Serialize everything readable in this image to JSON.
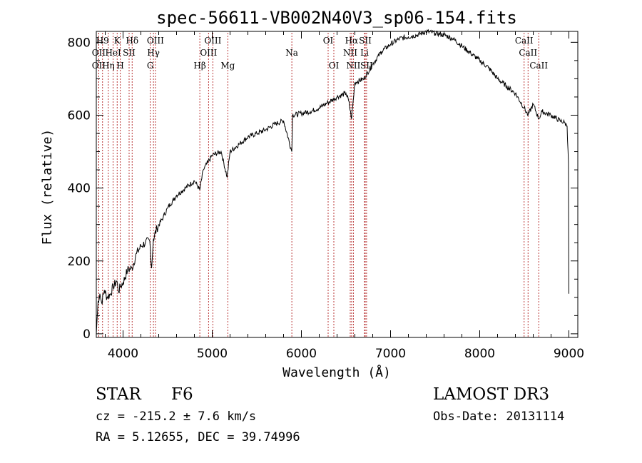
{
  "chart_data": {
    "type": "line",
    "title": "spec-56611-VB002N40V3_sp06-154.fits",
    "xlabel": "Wavelength (Å)",
    "ylabel": "Flux (relative)",
    "xlim": [
      3700,
      9100
    ],
    "ylim": [
      -10,
      830
    ],
    "x_ticks": [
      4000,
      5000,
      6000,
      7000,
      8000,
      9000
    ],
    "y_ticks": [
      0,
      200,
      400,
      600,
      800
    ],
    "colors": {
      "spectrum": "#000000",
      "line_marker": "#b22222"
    },
    "series": [
      {
        "name": "flux",
        "x": [
          3700,
          3720,
          3740,
          3760,
          3790,
          3820,
          3860,
          3890,
          3930,
          3950,
          3970,
          4000,
          4050,
          4100,
          4150,
          4200,
          4250,
          4300,
          4320,
          4340,
          4380,
          4450,
          4500,
          4600,
          4700,
          4800,
          4861,
          4900,
          4950,
          5000,
          5100,
          5167,
          5200,
          5300,
          5400,
          5500,
          5600,
          5700,
          5800,
          5893,
          5900,
          6000,
          6100,
          6200,
          6300,
          6400,
          6500,
          6530,
          6563,
          6600,
          6700,
          6800,
          6900,
          7000,
          7100,
          7200,
          7300,
          7400,
          7500,
          7600,
          7700,
          7800,
          7900,
          8000,
          8100,
          8200,
          8300,
          8400,
          8498,
          8542,
          8600,
          8662,
          8700,
          8800,
          8900,
          8950,
          8980,
          8995,
          9000
        ],
        "values": [
          0,
          90,
          110,
          85,
          120,
          100,
          110,
          130,
          145,
          115,
          130,
          140,
          175,
          180,
          220,
          240,
          250,
          255,
          180,
          260,
          290,
          320,
          345,
          380,
          400,
          420,
          395,
          450,
          470,
          490,
          500,
          430,
          500,
          520,
          540,
          550,
          560,
          575,
          585,
          500,
          600,
          605,
          610,
          620,
          635,
          650,
          660,
          640,
          590,
          690,
          700,
          740,
          775,
          795,
          810,
          815,
          820,
          830,
          825,
          820,
          810,
          790,
          770,
          750,
          730,
          700,
          680,
          660,
          620,
          600,
          630,
          590,
          610,
          600,
          585,
          580,
          570,
          470,
          110
        ]
      }
    ],
    "lines": [
      {
        "label": "OII",
        "x": 3727,
        "row": 2
      },
      {
        "label": "H9",
        "x": 3770,
        "row": 0
      },
      {
        "label": "OII",
        "x": 3727,
        "row": 1
      },
      {
        "label": "Hη",
        "x": 3835,
        "row": 2
      },
      {
        "label": "HeI",
        "x": 3889,
        "row": 1
      },
      {
        "label": "K",
        "x": 3934,
        "row": 0
      },
      {
        "label": "SII",
        "x": 4068,
        "row": 1
      },
      {
        "label": "H",
        "x": 3969,
        "row": 2
      },
      {
        "label": "Hδ",
        "x": 4102,
        "row": 0
      },
      {
        "label": "G",
        "x": 4305,
        "row": 2
      },
      {
        "label": "Hγ",
        "x": 4341,
        "row": 1
      },
      {
        "label": "OIII",
        "x": 4363,
        "row": 0
      },
      {
        "label": "Hβ",
        "x": 4861,
        "row": 2
      },
      {
        "label": "OIII",
        "x": 4959,
        "row": 1
      },
      {
        "label": "OIII",
        "x": 5007,
        "row": 0
      },
      {
        "label": "Mg",
        "x": 5175,
        "row": 2
      },
      {
        "label": "Na",
        "x": 5893,
        "row": 1
      },
      {
        "label": "OI",
        "x": 6300,
        "row": 0
      },
      {
        "label": "OI",
        "x": 6364,
        "row": 2
      },
      {
        "label": "NII",
        "x": 6548,
        "row": 1
      },
      {
        "label": "Hα",
        "x": 6563,
        "row": 0
      },
      {
        "label": "NII",
        "x": 6583,
        "row": 2
      },
      {
        "label": "SII",
        "x": 6716,
        "row": 0
      },
      {
        "label": "Li",
        "x": 6708,
        "row": 1
      },
      {
        "label": "SII",
        "x": 6731,
        "row": 2
      },
      {
        "label": "CaII",
        "x": 8498,
        "row": 0
      },
      {
        "label": "CaII",
        "x": 8542,
        "row": 1
      },
      {
        "label": "CaII",
        "x": 8662,
        "row": 2
      }
    ]
  },
  "info": {
    "object_class": "STAR",
    "subclass": "F6",
    "survey": "LAMOST DR3",
    "redshift": "cz = -215.2 ± 7.6 km/s",
    "obs_date": "Obs-Date: 20131114",
    "coords": "RA =    5.12655, DEC =   39.74996"
  }
}
